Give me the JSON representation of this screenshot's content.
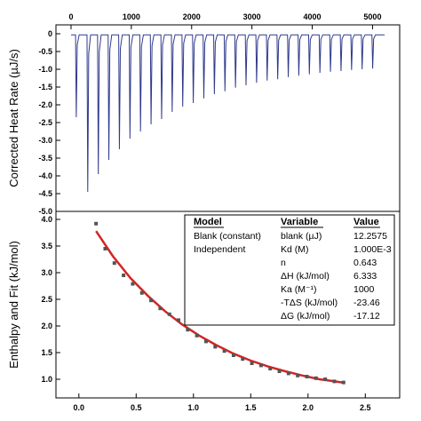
{
  "colors": {
    "raw_trace": "#2f3a8c",
    "fit_line": "#d42424",
    "data_point": "#555555",
    "frame": "#000000"
  },
  "chart_data": [
    {
      "type": "line",
      "panel": "top",
      "ylabel": "Corrected Heat Rate (µJ/s)",
      "top_axis_ticks": [
        "0",
        "1000",
        "2000",
        "3000",
        "4000",
        "5000"
      ],
      "xlim": [
        -250,
        5450
      ],
      "ylim": [
        -5.0,
        0.25
      ],
      "yticks": [
        "0",
        "-0.5",
        "-1.0",
        "-1.5",
        "-2.0",
        "-2.5",
        "-3.0",
        "-3.5",
        "-4.0",
        "-4.5",
        "-5.0"
      ],
      "trace_start": 0,
      "trace_end": 5200,
      "baseline": -0.03,
      "injections": [
        {
          "time": 75,
          "peak": -2.35
        },
        {
          "time": 265,
          "peak": -4.45
        },
        {
          "time": 440,
          "peak": -3.95
        },
        {
          "time": 615,
          "peak": -3.55
        },
        {
          "time": 790,
          "peak": -3.25
        },
        {
          "time": 965,
          "peak": -2.95
        },
        {
          "time": 1140,
          "peak": -2.75
        },
        {
          "time": 1315,
          "peak": -2.55
        },
        {
          "time": 1490,
          "peak": -2.4
        },
        {
          "time": 1665,
          "peak": -2.2
        },
        {
          "time": 1840,
          "peak": -2.05
        },
        {
          "time": 2015,
          "peak": -1.95
        },
        {
          "time": 2190,
          "peak": -1.82
        },
        {
          "time": 2365,
          "peak": -1.7
        },
        {
          "time": 2540,
          "peak": -1.62
        },
        {
          "time": 2715,
          "peak": -1.52
        },
        {
          "time": 2890,
          "peak": -1.45
        },
        {
          "time": 3065,
          "peak": -1.38
        },
        {
          "time": 3240,
          "peak": -1.32
        },
        {
          "time": 3415,
          "peak": -1.28
        },
        {
          "time": 3590,
          "peak": -1.22
        },
        {
          "time": 3765,
          "peak": -1.18
        },
        {
          "time": 3940,
          "peak": -1.14
        },
        {
          "time": 4115,
          "peak": -1.1
        },
        {
          "time": 4290,
          "peak": -1.07
        },
        {
          "time": 4465,
          "peak": -1.05
        },
        {
          "time": 4640,
          "peak": -1.02
        },
        {
          "time": 4815,
          "peak": -1.0
        },
        {
          "time": 4990,
          "peak": -0.98
        }
      ]
    },
    {
      "type": "scatter",
      "panel": "bottom",
      "ylabel": "Enthalpy and Fit (kJ/mol)",
      "xlim": [
        -0.2,
        2.8
      ],
      "ylim": [
        0.65,
        4.15
      ],
      "xticks": [
        "0.0",
        "0.5",
        "1.0",
        "1.5",
        "2.0",
        "2.5"
      ],
      "yticks": [
        "1.0",
        "1.5",
        "2.0",
        "2.5",
        "3.0",
        "3.5",
        "4.0"
      ],
      "x": [
        0.15,
        0.23,
        0.31,
        0.39,
        0.47,
        0.55,
        0.63,
        0.71,
        0.79,
        0.87,
        0.95,
        1.03,
        1.11,
        1.19,
        1.27,
        1.35,
        1.43,
        1.51,
        1.59,
        1.67,
        1.75,
        1.83,
        1.91,
        1.99,
        2.07,
        2.15,
        2.23,
        2.31
      ],
      "y": [
        3.92,
        3.45,
        3.18,
        2.95,
        2.79,
        2.62,
        2.48,
        2.33,
        2.22,
        2.11,
        1.93,
        1.82,
        1.71,
        1.61,
        1.53,
        1.45,
        1.38,
        1.3,
        1.26,
        1.2,
        1.15,
        1.11,
        1.07,
        1.05,
        1.02,
        1.0,
        0.96,
        0.94
      ],
      "fit": {
        "name": "fit",
        "x": [
          0.15,
          0.3,
          0.45,
          0.6,
          0.75,
          0.9,
          1.05,
          1.2,
          1.35,
          1.5,
          1.65,
          1.8,
          1.95,
          2.1,
          2.2,
          2.3
        ],
        "y": [
          3.78,
          3.3,
          2.9,
          2.57,
          2.28,
          2.03,
          1.82,
          1.64,
          1.48,
          1.35,
          1.24,
          1.15,
          1.07,
          1.0,
          0.97,
          0.94
        ]
      }
    }
  ],
  "results_table": {
    "headers": {
      "model": "Model",
      "variable": "Variable",
      "value": "Value"
    },
    "rows": [
      {
        "model": "Blank (constant)",
        "variable": "blank (µJ)",
        "value": "12.2575"
      },
      {
        "model": "Independent",
        "variable": "Kd (M)",
        "value": "1.000E-3"
      },
      {
        "model": "",
        "variable": "n",
        "value": "0.643"
      },
      {
        "model": "",
        "variable": "ΔH (kJ/mol)",
        "value": "6.333"
      },
      {
        "model": "",
        "variable": "Ka (M⁻¹)",
        "value": "1000"
      },
      {
        "model": "",
        "variable": "-TΔS (kJ/mol)",
        "value": "-23.46"
      },
      {
        "model": "",
        "variable": "ΔG (kJ/mol)",
        "value": "-17.12"
      }
    ]
  }
}
